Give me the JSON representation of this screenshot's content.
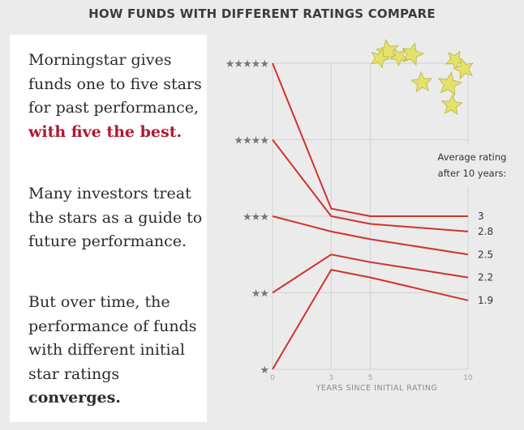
{
  "title": "HOW FUNDS WITH DIFFERENT RATINGS COMPARE",
  "text": {
    "p1_plain": "Morningstar gives funds one to five stars for past performance, ",
    "p1_highlight": "with five the best.",
    "p2": "Many investors treat the stars as a guide to future performance.",
    "p3_plain": "But over time, the performance of funds with different initial star ratings ",
    "p3_bold": "converges."
  },
  "colors": {
    "line": "#d0312d",
    "highlight": "#b0182e",
    "grid": "#d6d6d6",
    "star": "#777777",
    "gold": "#e3e26a"
  },
  "chart_data": {
    "type": "line",
    "title": "HOW FUNDS WITH DIFFERENT RATINGS COMPARE",
    "xlabel": "YEARS SINCE INITIAL RATING",
    "ylabel": "",
    "x": [
      0,
      3,
      5,
      10
    ],
    "x_ticks": [
      "0",
      "3",
      "5",
      "10"
    ],
    "y_ticks": [
      "★",
      "★★",
      "★★★",
      "★★★★",
      "★★★★★"
    ],
    "y_tick_values": [
      1,
      2,
      3,
      4,
      5
    ],
    "xlim": [
      0,
      10
    ],
    "ylim": [
      1,
      5
    ],
    "grid": true,
    "end_label_title": "Average rating after 10 years:",
    "end_label_title_lines": [
      "Average rating",
      "after 10 years:"
    ],
    "series": [
      {
        "name": "5 stars",
        "values": [
          5,
          3.1,
          3.0,
          3.0
        ],
        "end_label": "3"
      },
      {
        "name": "4 stars",
        "values": [
          4,
          3.0,
          2.9,
          2.8
        ],
        "end_label": "2.8"
      },
      {
        "name": "3 stars",
        "values": [
          3,
          2.8,
          2.7,
          2.5
        ],
        "end_label": "2.5"
      },
      {
        "name": "2 stars",
        "values": [
          2,
          2.5,
          2.4,
          2.2
        ],
        "end_label": "2.2"
      },
      {
        "name": "1 star",
        "values": [
          1,
          2.3,
          2.2,
          1.9
        ],
        "end_label": "1.9"
      }
    ]
  }
}
